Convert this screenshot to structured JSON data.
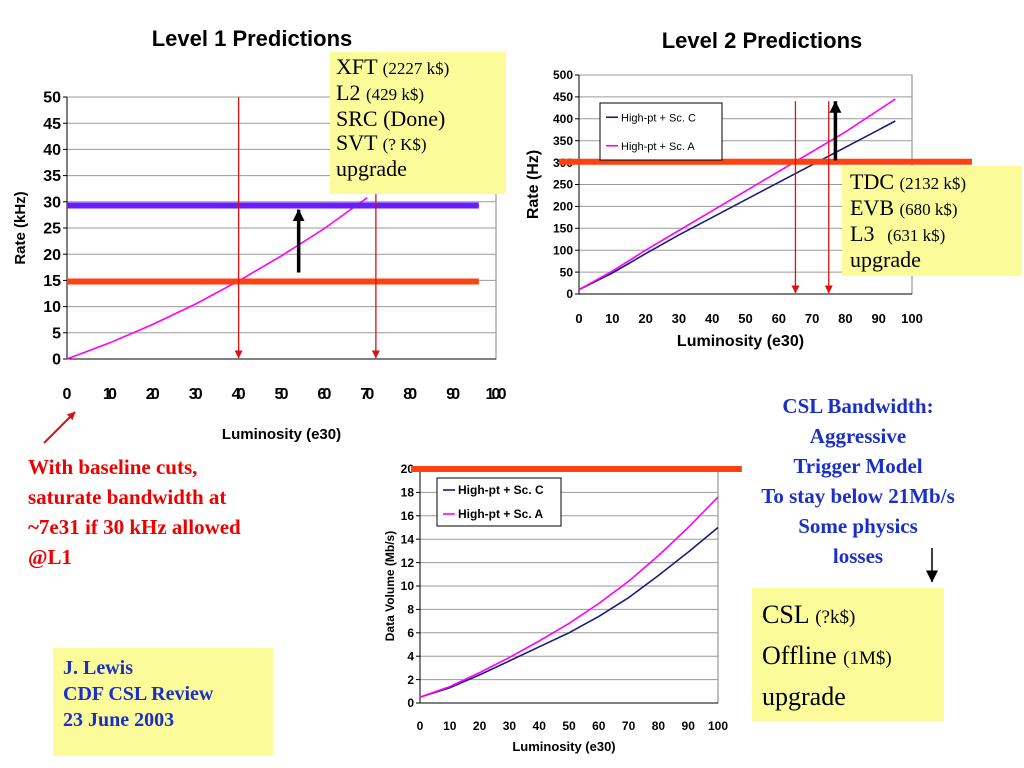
{
  "chart_data": [
    {
      "type": "line",
      "title": "Level 1 Predictions",
      "xlabel": "Luminosity (e30)",
      "ylabel": "Rate (kHz)",
      "xlim": [
        0,
        100
      ],
      "ylim": [
        0,
        50
      ],
      "x_ticks": [
        "0",
        "10",
        "20",
        "30",
        "40",
        "50",
        "60",
        "70",
        "80",
        "90",
        "100"
      ],
      "y_ticks": [
        "0",
        "5",
        "10",
        "15",
        "20",
        "25",
        "30",
        "35",
        "40",
        "45",
        "50"
      ],
      "grid": true,
      "legend": null,
      "series": [
        {
          "color": "#ff00ff",
          "x": [
            0,
            10,
            20,
            30,
            40,
            50,
            60,
            70
          ],
          "y": [
            0,
            3.1,
            6.6,
            10.5,
            14.9,
            19.7,
            24.9,
            30.8
          ]
        }
      ],
      "annotations": {
        "horizontal_lines": [
          {
            "y": 29.3,
            "x_range": [
              0,
              96
            ],
            "color": "#6a1bff"
          },
          {
            "y": 14.8,
            "x_range": [
              0,
              96
            ],
            "color": "#ff4010"
          }
        ],
        "vertical_arrows": [
          {
            "x": 40,
            "y_from": 50,
            "y_to": 0,
            "color": "#dd1111"
          },
          {
            "x": 72,
            "y_from": 50,
            "y_to": 0,
            "color": "#dd1111"
          }
        ],
        "up_arrow": {
          "x": 54,
          "y_from": 16.5,
          "y_to": 28.5,
          "color": "#000000"
        }
      }
    },
    {
      "type": "line",
      "title": "Level 2 Predictions",
      "xlabel": "Luminosity (e30)",
      "ylabel": "Rate (Hz)",
      "xlim": [
        0,
        100
      ],
      "ylim": [
        0,
        500
      ],
      "x_ticks": [
        "0",
        "10",
        "20",
        "30",
        "40",
        "50",
        "60",
        "70",
        "80",
        "90",
        "100"
      ],
      "y_ticks": [
        "0",
        "50",
        "100",
        "150",
        "200",
        "250",
        "300",
        "350",
        "400",
        "450",
        "500"
      ],
      "grid": true,
      "legend": "top-left",
      "series": [
        {
          "name": "High-pt + Sc. C",
          "color": "#1b1b7a",
          "x": [
            0,
            10,
            20,
            30,
            40,
            50,
            60,
            70,
            80,
            90,
            95
          ],
          "y": [
            10,
            48,
            92,
            135,
            175,
            215,
            255,
            295,
            335,
            375,
            395
          ]
        },
        {
          "name": "High-pt + Sc. A",
          "color": "#ff00ff",
          "x": [
            0,
            10,
            20,
            30,
            40,
            50,
            60,
            70,
            80,
            90,
            95
          ],
          "y": [
            10,
            52,
            100,
            145,
            190,
            235,
            280,
            325,
            370,
            420,
            445
          ]
        }
      ],
      "annotations": {
        "horizontal_lines": [
          {
            "y": 302,
            "x_range": [
              -6,
              118
            ],
            "color": "#ff4010"
          }
        ],
        "vertical_arrows": [
          {
            "x": 65,
            "y_from": 440,
            "y_to": 0,
            "color": "#dd1111"
          },
          {
            "x": 75,
            "y_from": 440,
            "y_to": 0,
            "color": "#dd1111"
          }
        ],
        "up_arrow": {
          "x": 77,
          "y_from": 305,
          "y_to": 440,
          "color": "#000000"
        }
      }
    },
    {
      "type": "line",
      "title": "",
      "xlabel": "Luminosity (e30)",
      "ylabel": "Data Volume (Mb/s)",
      "xlim": [
        0,
        100
      ],
      "ylim": [
        0,
        20
      ],
      "x_ticks": [
        "0",
        "10",
        "20",
        "30",
        "40",
        "50",
        "60",
        "70",
        "80",
        "90",
        "100"
      ],
      "y_ticks": [
        "0",
        "2",
        "4",
        "6",
        "8",
        "10",
        "12",
        "14",
        "16",
        "18",
        "20"
      ],
      "grid": true,
      "legend": "top-left",
      "series": [
        {
          "name": "High-pt + Sc. C",
          "color": "#1b1b7a",
          "x": [
            0,
            10,
            20,
            30,
            40,
            50,
            60,
            70,
            80,
            90,
            100
          ],
          "y": [
            0.5,
            1.3,
            2.4,
            3.6,
            4.8,
            6.0,
            7.4,
            9.0,
            10.9,
            12.9,
            15.0
          ]
        },
        {
          "name": "High-pt + Sc. A",
          "color": "#ff00ff",
          "x": [
            0,
            10,
            20,
            30,
            40,
            50,
            60,
            70,
            80,
            90,
            100
          ],
          "y": [
            0.5,
            1.4,
            2.6,
            3.9,
            5.3,
            6.8,
            8.5,
            10.4,
            12.6,
            15.0,
            17.6
          ]
        }
      ],
      "annotations": {
        "horizontal_lines": [
          {
            "y": 20.0,
            "x_range": [
              -3,
              108
            ],
            "color": "#ff4010"
          }
        ]
      }
    }
  ],
  "boxes": {
    "l1": {
      "lines": [
        {
          "main": "XFT",
          "sub": "(2227 k$)"
        },
        {
          "main": "L2",
          "sub": " (429 k$)"
        },
        {
          "main": "SRC (Done)",
          "sub": ""
        },
        {
          "main": "SVT",
          "sub": "(? K$)"
        },
        {
          "main": "upgrade",
          "sub": ""
        }
      ]
    },
    "l2": {
      "lines": [
        {
          "main": "TDC",
          "sub": "(2132 k$)"
        },
        {
          "main": "EVB",
          "sub": "(680 k$)"
        },
        {
          "main": "L3",
          "sub": "   (631 k$)"
        },
        {
          "main": "upgrade",
          "sub": ""
        }
      ]
    },
    "csl": {
      "lines": [
        {
          "main": "CSL",
          "sub": "(?k$)"
        },
        {
          "main": "Offline",
          "sub": "(1M$)"
        },
        {
          "main": "upgrade",
          "sub": ""
        }
      ]
    }
  },
  "notes": {
    "red": [
      "With baseline cuts,",
      "saturate bandwidth at",
      "~7e31 if 30 kHz allowed",
      "@L1"
    ],
    "blue": [
      "CSL Bandwidth:",
      "Aggressive",
      "Trigger Model",
      "To stay below 21Mb/s",
      "Some physics",
      "losses"
    ]
  },
  "author": [
    "J. Lewis",
    "CDF CSL Review",
    "23 June 2003"
  ],
  "colors": {
    "box_fill": "#fbfb9a",
    "red_text": "#ee0000",
    "blue_text": "#1a2fc8"
  }
}
